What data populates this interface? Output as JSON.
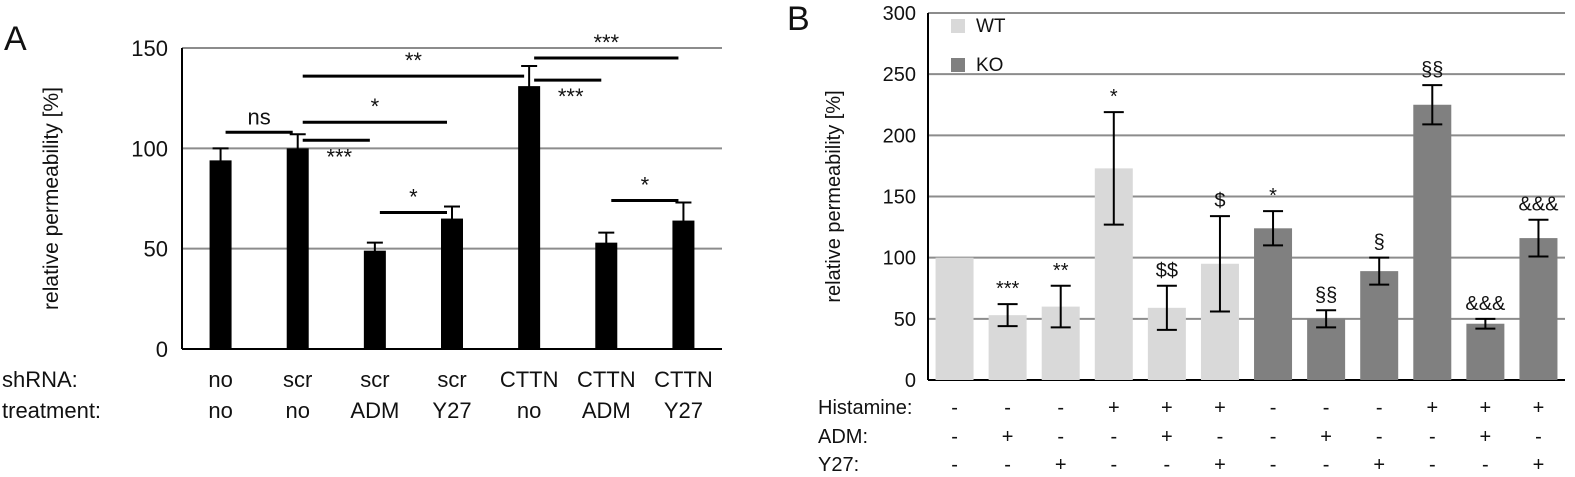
{
  "chart_data": [
    {
      "panel": "A",
      "type": "bar",
      "ylabel": "relative permeability [%]",
      "ylim": [
        0,
        150
      ],
      "yticks": [
        0,
        50,
        100,
        150
      ],
      "grid": true,
      "bar_color": "#000000",
      "row_labels": [
        "shRNA:",
        "treatment:"
      ],
      "categories": [
        {
          "shrna": "no",
          "treatment": "no"
        },
        {
          "shrna": "scr",
          "treatment": "no"
        },
        {
          "shrna": "scr",
          "treatment": "ADM"
        },
        {
          "shrna": "scr",
          "treatment": "Y27"
        },
        {
          "shrna": "CTTN",
          "treatment": "no"
        },
        {
          "shrna": "CTTN",
          "treatment": "ADM"
        },
        {
          "shrna": "CTTN",
          "treatment": "Y27"
        }
      ],
      "values": [
        94,
        100,
        49,
        65,
        131,
        53,
        64
      ],
      "errors": [
        6,
        7,
        4,
        6,
        10,
        5,
        9
      ],
      "comparisons": [
        {
          "from": 0,
          "to": 1,
          "label": "ns",
          "y": 108
        },
        {
          "from": 1,
          "to": 4,
          "label": "**",
          "y": 136
        },
        {
          "from": 1,
          "to": 3,
          "label": "*",
          "y": 113
        },
        {
          "from": 1,
          "to": 2,
          "label": "***",
          "y": 104
        },
        {
          "from": 2,
          "to": 3,
          "label": "*",
          "y": 68
        },
        {
          "from": 4,
          "to": 6,
          "label": "***",
          "y": 145
        },
        {
          "from": 4,
          "to": 5,
          "label": "***",
          "y": 134
        },
        {
          "from": 5,
          "to": 6,
          "label": "*",
          "y": 74
        }
      ]
    },
    {
      "panel": "B",
      "type": "bar",
      "ylabel": "relative permeability [%]",
      "ylim": [
        0,
        300
      ],
      "yticks": [
        0,
        50,
        100,
        150,
        200,
        250,
        300
      ],
      "grid": true,
      "legend": [
        {
          "name": "WT",
          "color": "#d9d9d9"
        },
        {
          "name": "KO",
          "color": "#808080"
        }
      ],
      "row_labels": [
        "Histamine:",
        "ADM:",
        "Y27:"
      ],
      "conditions": {
        "histamine": [
          "-",
          "-",
          "-",
          "+",
          "+",
          "+",
          "-",
          "-",
          "-",
          "+",
          "+",
          "+"
        ],
        "adm": [
          "-",
          "+",
          "-",
          "-",
          "+",
          "-",
          "-",
          "+",
          "-",
          "-",
          "+",
          "-"
        ],
        "y27": [
          "-",
          "-",
          "+",
          "-",
          "-",
          "+",
          "-",
          "-",
          "+",
          "-",
          "-",
          "+"
        ]
      },
      "groups": [
        "WT",
        "WT",
        "WT",
        "WT",
        "WT",
        "WT",
        "KO",
        "KO",
        "KO",
        "KO",
        "KO",
        "KO"
      ],
      "values": [
        100,
        53,
        60,
        173,
        59,
        95,
        124,
        50,
        89,
        225,
        46,
        116
      ],
      "errors": [
        0,
        9,
        17,
        46,
        18,
        39,
        14,
        7,
        11,
        16,
        4,
        15
      ],
      "annotations": [
        "",
        "***",
        "**",
        "*",
        "$$",
        "$",
        "*",
        "§§",
        "§",
        "§§",
        "&&&",
        "&&&"
      ]
    }
  ],
  "panels": {
    "a": "A",
    "b": "B"
  }
}
